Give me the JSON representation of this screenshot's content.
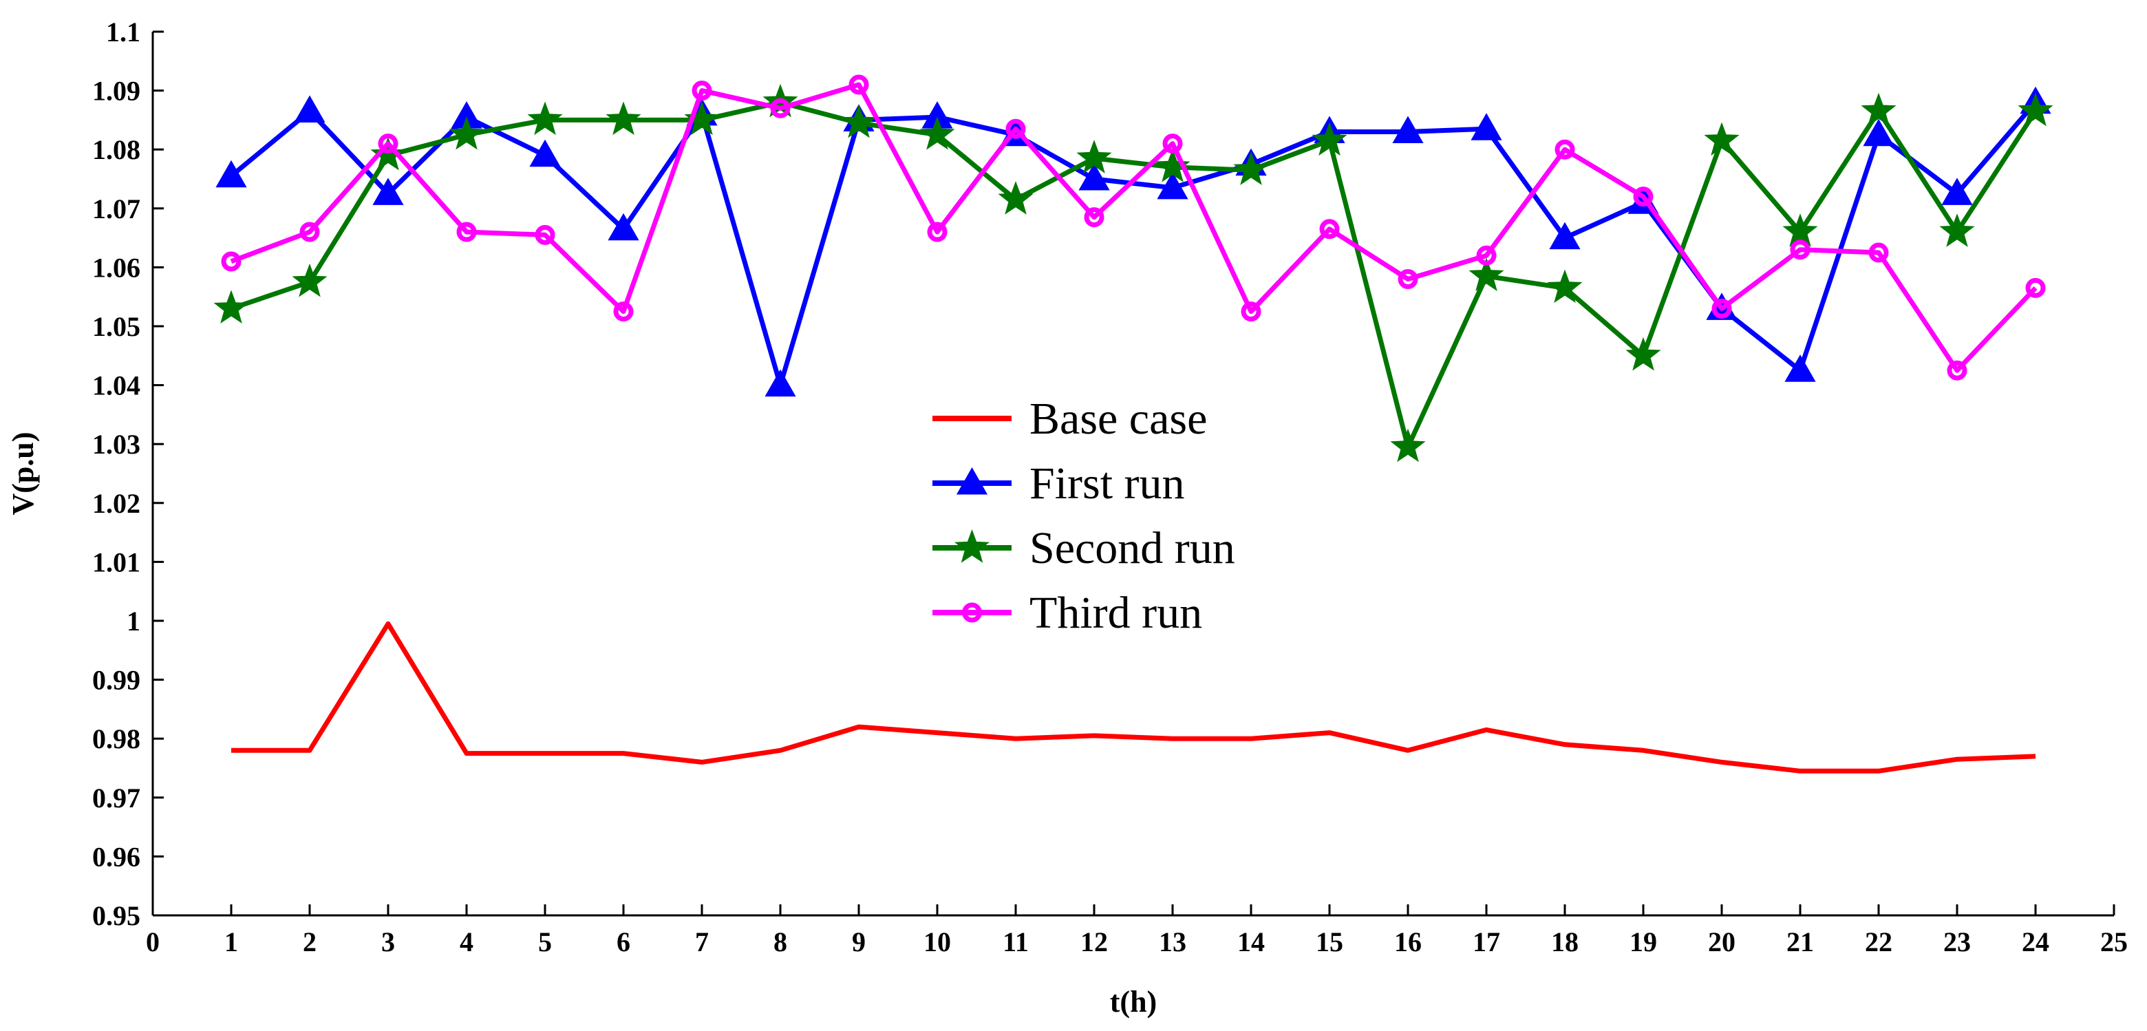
{
  "chart_data": {
    "type": "line",
    "title": "",
    "xlabel": "t(h)",
    "ylabel": "V(p.u)",
    "xlim": [
      0,
      25
    ],
    "ylim": [
      0.95,
      1.1
    ],
    "grid": false,
    "legend_position": "center",
    "x": [
      1,
      2,
      3,
      4,
      5,
      6,
      7,
      8,
      9,
      10,
      11,
      12,
      13,
      14,
      15,
      16,
      17,
      18,
      19,
      20,
      21,
      22,
      23,
      24
    ],
    "xticks": [
      0,
      1,
      2,
      3,
      4,
      5,
      6,
      7,
      8,
      9,
      10,
      11,
      12,
      13,
      14,
      15,
      16,
      17,
      18,
      19,
      20,
      21,
      22,
      23,
      24,
      25
    ],
    "xtick_labels": [
      "0",
      "1",
      "2",
      "3",
      "4",
      "5",
      "6",
      "7",
      "8",
      "9",
      "10",
      "11",
      "12",
      "13",
      "14",
      "15",
      "16",
      "17",
      "18",
      "19",
      "20",
      "21",
      "22",
      "23",
      "24",
      "25"
    ],
    "yticks": [
      0.95,
      0.96,
      0.97,
      0.98,
      0.99,
      1.0,
      1.01,
      1.02,
      1.03,
      1.04,
      1.05,
      1.06,
      1.07,
      1.08,
      1.09,
      1.1
    ],
    "ytick_labels": [
      "0.95",
      "0.96",
      "0.97",
      "0.98",
      "0.99",
      "1",
      "1.01",
      "1.02",
      "1.03",
      "1.04",
      "1.05",
      "1.06",
      "1.07",
      "1.08",
      "1.09",
      "1.1"
    ],
    "series": [
      {
        "name": "Base case",
        "color": "#ff0000",
        "marker": "none",
        "values": [
          0.978,
          0.978,
          0.9995,
          0.9775,
          0.9775,
          0.9775,
          0.976,
          0.978,
          0.982,
          0.981,
          0.98,
          0.9805,
          0.98,
          0.98,
          0.981,
          0.978,
          0.9815,
          0.979,
          0.978,
          0.976,
          0.9745,
          0.9745,
          0.9765,
          0.977
        ]
      },
      {
        "name": "First run",
        "color": "#0000ff",
        "marker": "triangle",
        "values": [
          1.0755,
          1.0865,
          1.0725,
          1.0855,
          1.079,
          1.0665,
          1.086,
          1.04,
          1.085,
          1.0855,
          1.0825,
          1.075,
          1.0735,
          1.0775,
          1.083,
          1.083,
          1.0835,
          1.065,
          1.071,
          1.053,
          1.0425,
          1.0825,
          1.0725,
          1.088
        ]
      },
      {
        "name": "Second run",
        "color": "#007700",
        "marker": "star",
        "values": [
          1.053,
          1.0575,
          1.079,
          1.0825,
          1.085,
          1.085,
          1.085,
          1.088,
          1.0845,
          1.0825,
          1.0715,
          1.0785,
          1.077,
          1.0765,
          1.0815,
          1.0295,
          1.0585,
          1.0565,
          1.045,
          1.0815,
          1.066,
          1.0865,
          1.066,
          1.0865
        ]
      },
      {
        "name": "Third run",
        "color": "#ff00ff",
        "marker": "circle",
        "values": [
          1.061,
          1.066,
          1.081,
          1.066,
          1.0655,
          1.0525,
          1.09,
          1.087,
          1.091,
          1.066,
          1.0835,
          1.0685,
          1.081,
          1.0525,
          1.0665,
          1.058,
          1.062,
          1.08,
          1.072,
          1.053,
          1.063,
          1.0625,
          1.0425,
          1.0565
        ]
      }
    ]
  }
}
